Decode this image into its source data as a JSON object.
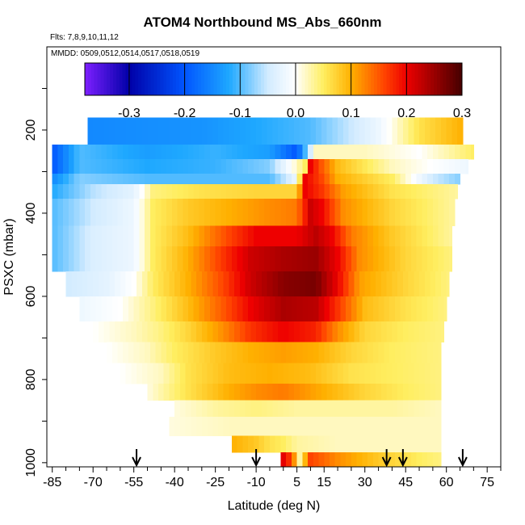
{
  "chart_data": {
    "type": "heatmap",
    "title": "ATOM4 Northbound MS_Abs_660nm",
    "subtitle": "Flts: 7,8,9,10,11,12",
    "annotation": "MMDD: 0509,0512,0514,0517,0518,0519",
    "xlabel": "Latitude (deg N)",
    "ylabel": "PSXC (mbar)",
    "xlim": [
      -87,
      80
    ],
    "ylim": [
      1010,
      0
    ],
    "x_ticks": [
      "-85",
      "-70",
      "-55",
      "-40",
      "-25",
      "-10",
      "5",
      "15",
      "30",
      "45",
      "60",
      "75"
    ],
    "y_ticks": [
      "200",
      "400",
      "600",
      "800",
      "1000"
    ],
    "colorbar": {
      "range": [
        -0.38,
        0.3
      ],
      "ticks": [
        "-0.3",
        "-0.2",
        "-0.1",
        "0.0",
        "0.1",
        "0.2",
        "0.3"
      ],
      "colors": [
        "#7d1fff",
        "#0000a8",
        "#0055ff",
        "#1ea8ff",
        "#d2ebff",
        "#ffffff",
        "#ffee60",
        "#ffb000",
        "#ff4400",
        "#ee0000",
        "#450000"
      ]
    },
    "profile_markers_lat": [
      -54,
      -10,
      38,
      44,
      66
    ],
    "grid": "none",
    "colorbar_placement": "top-inset",
    "rows": [
      {
        "p_top": 170,
        "p_bot": 235,
        "lat_min": -72,
        "lat_max": 66,
        "nodes": [
          [
            -72,
            -0.15
          ],
          [
            -30,
            -0.14
          ],
          [
            10,
            -0.1
          ],
          [
            35,
            -0.02
          ],
          [
            50,
            0.06
          ],
          [
            66,
            0.1
          ]
        ]
      },
      {
        "p_top": 235,
        "p_bot": 270,
        "lat_min": -85,
        "lat_max": 70,
        "nodes": [
          [
            -85,
            -0.2
          ],
          [
            -75,
            -0.1
          ],
          [
            -50,
            -0.13
          ],
          [
            -25,
            -0.11
          ],
          [
            -5,
            -0.13
          ],
          [
            5,
            -0.2
          ],
          [
            12,
            0.02
          ],
          [
            30,
            0.02
          ],
          [
            50,
            0.0
          ],
          [
            70,
            0.05
          ]
        ]
      },
      {
        "p_top": 270,
        "p_bot": 305,
        "lat_min": -85,
        "lat_max": 68,
        "nodes": [
          [
            -85,
            -0.2
          ],
          [
            -75,
            -0.1
          ],
          [
            -50,
            -0.12
          ],
          [
            -25,
            -0.11
          ],
          [
            -5,
            -0.08
          ],
          [
            8,
            0.05
          ],
          [
            10,
            0.2
          ],
          [
            14,
            0.15
          ],
          [
            20,
            0.09
          ],
          [
            40,
            0.02
          ],
          [
            68,
            -0.02
          ]
        ]
      },
      {
        "p_top": 305,
        "p_bot": 330,
        "lat_min": -85,
        "lat_max": 65,
        "nodes": [
          [
            -85,
            -0.15
          ],
          [
            -75,
            -0.08
          ],
          [
            -50,
            -0.1
          ],
          [
            -25,
            -0.1
          ],
          [
            -5,
            -0.1
          ],
          [
            5,
            -0.02
          ],
          [
            8,
            0.2
          ],
          [
            14,
            0.16
          ],
          [
            20,
            0.1
          ],
          [
            40,
            0.05
          ],
          [
            55,
            -0.05
          ],
          [
            65,
            -0.08
          ]
        ]
      },
      {
        "p_top": 330,
        "p_bot": 365,
        "lat_min": -85,
        "lat_max": 64,
        "nodes": [
          [
            -85,
            -0.12
          ],
          [
            -70,
            -0.06
          ],
          [
            -55,
            -0.03
          ],
          [
            -48,
            0.04
          ],
          [
            -30,
            0.06
          ],
          [
            -10,
            0.07
          ],
          [
            5,
            0.07
          ],
          [
            8,
            0.2
          ],
          [
            14,
            0.17
          ],
          [
            22,
            0.11
          ],
          [
            40,
            0.06
          ],
          [
            64,
            0.03
          ]
        ]
      },
      {
        "p_top": 365,
        "p_bot": 430,
        "lat_min": -85,
        "lat_max": 63,
        "nodes": [
          [
            -85,
            -0.1
          ],
          [
            -70,
            -0.05
          ],
          [
            -55,
            -0.02
          ],
          [
            -48,
            0.05
          ],
          [
            -35,
            0.08
          ],
          [
            -20,
            0.1
          ],
          [
            -5,
            0.12
          ],
          [
            5,
            0.13
          ],
          [
            10,
            0.22
          ],
          [
            14,
            0.2
          ],
          [
            22,
            0.12
          ],
          [
            40,
            0.07
          ],
          [
            63,
            0.03
          ]
        ]
      },
      {
        "p_top": 430,
        "p_bot": 480,
        "lat_min": -85,
        "lat_max": 62,
        "nodes": [
          [
            -85,
            -0.1
          ],
          [
            -70,
            -0.04
          ],
          [
            -55,
            -0.02
          ],
          [
            -48,
            0.05
          ],
          [
            -35,
            0.09
          ],
          [
            -20,
            0.16
          ],
          [
            -10,
            0.2
          ],
          [
            5,
            0.2
          ],
          [
            12,
            0.23
          ],
          [
            18,
            0.2
          ],
          [
            25,
            0.13
          ],
          [
            40,
            0.08
          ],
          [
            62,
            0.03
          ]
        ]
      },
      {
        "p_top": 480,
        "p_bot": 540,
        "lat_min": -85,
        "lat_max": 62,
        "nodes": [
          [
            -85,
            -0.1
          ],
          [
            -70,
            -0.04
          ],
          [
            -55,
            -0.02
          ],
          [
            -48,
            0.05
          ],
          [
            -35,
            0.1
          ],
          [
            -22,
            0.17
          ],
          [
            -12,
            0.22
          ],
          [
            0,
            0.24
          ],
          [
            12,
            0.25
          ],
          [
            20,
            0.2
          ],
          [
            28,
            0.12
          ],
          [
            45,
            0.07
          ],
          [
            62,
            0.04
          ]
        ]
      },
      {
        "p_top": 540,
        "p_bot": 600,
        "lat_min": -80,
        "lat_max": 61,
        "nodes": [
          [
            -80,
            -0.05
          ],
          [
            -65,
            -0.03
          ],
          [
            -55,
            0.0
          ],
          [
            -48,
            0.05
          ],
          [
            -35,
            0.1
          ],
          [
            -22,
            0.16
          ],
          [
            -12,
            0.22
          ],
          [
            0,
            0.26
          ],
          [
            12,
            0.27
          ],
          [
            20,
            0.2
          ],
          [
            28,
            0.11
          ],
          [
            45,
            0.07
          ],
          [
            61,
            0.04
          ]
        ]
      },
      {
        "p_top": 600,
        "p_bot": 660,
        "lat_min": -75,
        "lat_max": 60,
        "nodes": [
          [
            -75,
            -0.02
          ],
          [
            -60,
            0.0
          ],
          [
            -48,
            0.04
          ],
          [
            -35,
            0.09
          ],
          [
            -22,
            0.15
          ],
          [
            -12,
            0.2
          ],
          [
            0,
            0.24
          ],
          [
            12,
            0.23
          ],
          [
            20,
            0.17
          ],
          [
            30,
            0.09
          ],
          [
            45,
            0.06
          ],
          [
            60,
            0.04
          ]
        ]
      },
      {
        "p_top": 660,
        "p_bot": 710,
        "lat_min": -70,
        "lat_max": 59,
        "nodes": [
          [
            -70,
            0.0
          ],
          [
            -55,
            0.02
          ],
          [
            -45,
            0.04
          ],
          [
            -35,
            0.07
          ],
          [
            -22,
            0.12
          ],
          [
            -12,
            0.17
          ],
          [
            0,
            0.2
          ],
          [
            12,
            0.18
          ],
          [
            20,
            0.12
          ],
          [
            30,
            0.07
          ],
          [
            45,
            0.05
          ],
          [
            59,
            0.04
          ]
        ]
      },
      {
        "p_top": 710,
        "p_bot": 760,
        "lat_min": -65,
        "lat_max": 58,
        "nodes": [
          [
            -65,
            0.0
          ],
          [
            -50,
            0.02
          ],
          [
            -40,
            0.05
          ],
          [
            -25,
            0.08
          ],
          [
            -12,
            0.1
          ],
          [
            0,
            0.11
          ],
          [
            12,
            0.1
          ],
          [
            25,
            0.07
          ],
          [
            40,
            0.05
          ],
          [
            58,
            0.04
          ]
        ]
      },
      {
        "p_top": 760,
        "p_bot": 810,
        "lat_min": -60,
        "lat_max": 58,
        "nodes": [
          [
            -60,
            0.0
          ],
          [
            -45,
            0.02
          ],
          [
            -35,
            0.06
          ],
          [
            -20,
            0.09
          ],
          [
            -5,
            0.1
          ],
          [
            10,
            0.09
          ],
          [
            25,
            0.06
          ],
          [
            40,
            0.05
          ],
          [
            58,
            0.04
          ]
        ]
      },
      {
        "p_top": 810,
        "p_bot": 850,
        "lat_min": -50,
        "lat_max": 58,
        "nodes": [
          [
            -50,
            0.01
          ],
          [
            -35,
            0.06
          ],
          [
            -20,
            0.1
          ],
          [
            -10,
            0.12
          ],
          [
            0,
            0.13
          ],
          [
            15,
            0.1
          ],
          [
            30,
            0.07
          ],
          [
            45,
            0.05
          ],
          [
            58,
            0.04
          ]
        ]
      },
      {
        "p_top": 850,
        "p_bot": 890,
        "lat_min": -40,
        "lat_max": 58,
        "nodes": [
          [
            -40,
            0.01
          ],
          [
            -25,
            0.03
          ],
          [
            -10,
            0.04
          ],
          [
            5,
            0.03
          ],
          [
            20,
            0.03
          ],
          [
            40,
            0.03
          ],
          [
            58,
            0.02
          ]
        ]
      },
      {
        "p_top": 890,
        "p_bot": 935,
        "lat_min": -42,
        "lat_max": 58,
        "nodes": [
          [
            -42,
            0.01
          ],
          [
            -20,
            0.02
          ],
          [
            0,
            0.02
          ],
          [
            20,
            0.02
          ],
          [
            40,
            0.02
          ],
          [
            58,
            0.02
          ]
        ]
      },
      {
        "p_top": 935,
        "p_bot": 975,
        "lat_min": -19,
        "lat_max": 58,
        "nodes": [
          [
            -19,
            0.1
          ],
          [
            -10,
            0.08
          ],
          [
            -5,
            0.06
          ],
          [
            0,
            0.05
          ],
          [
            5,
            0.03
          ],
          [
            20,
            0.02
          ],
          [
            40,
            0.02
          ],
          [
            58,
            0.02
          ]
        ]
      },
      {
        "p_top": 975,
        "p_bot": 1010,
        "lat_min": -1,
        "lat_max": 58,
        "nodes": [
          [
            -1,
            0.22
          ],
          [
            3,
            0.16
          ],
          [
            6,
            0.03
          ],
          [
            10,
            0.16
          ],
          [
            20,
            0.12
          ],
          [
            35,
            0.08
          ],
          [
            50,
            0.05
          ],
          [
            58,
            0.04
          ]
        ]
      }
    ]
  }
}
